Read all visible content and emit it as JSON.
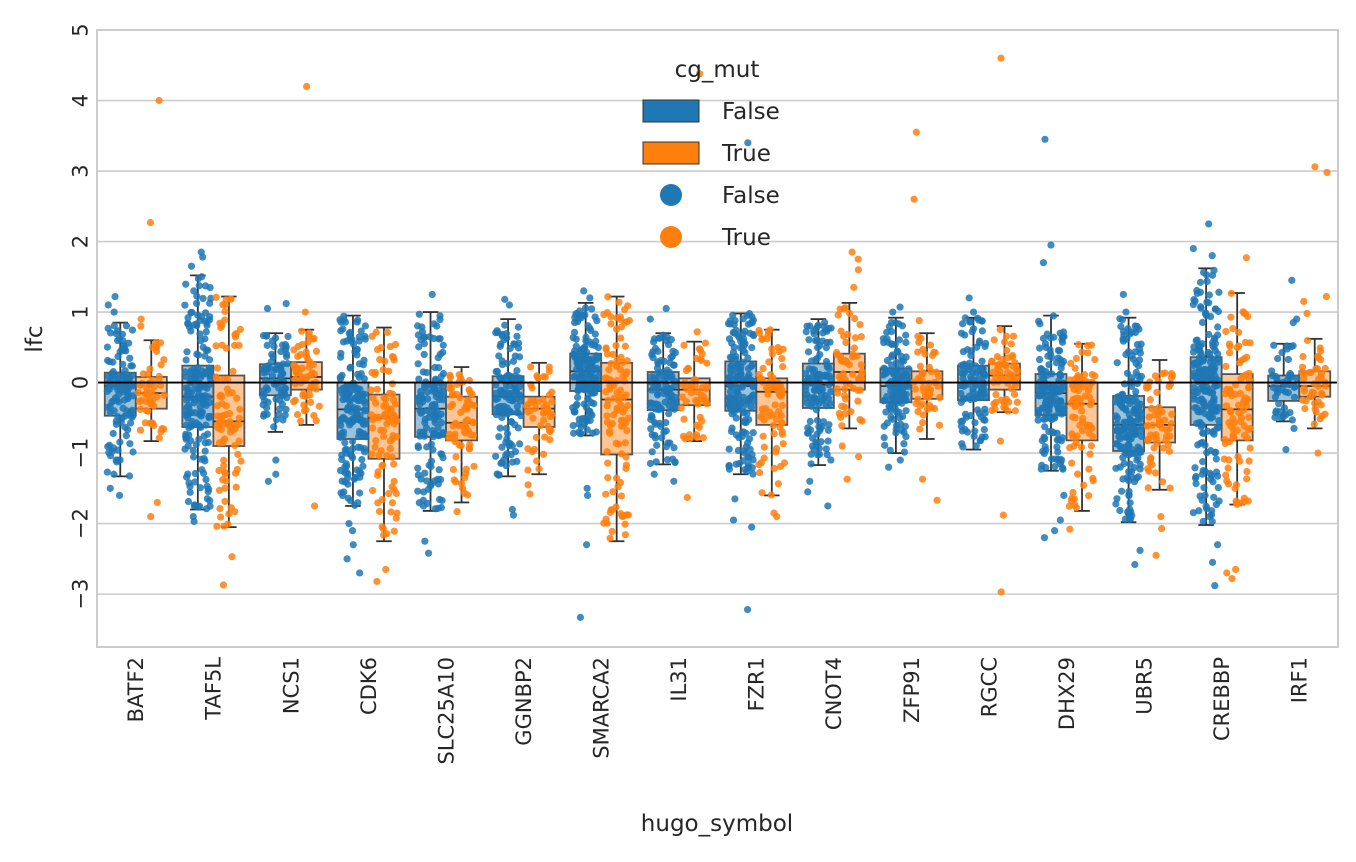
{
  "chart_data": {
    "type": "box",
    "xlabel": "hugo_symbol",
    "ylabel": "lfc",
    "ylim": [
      -3.75,
      5.0
    ],
    "yticks": [
      -3,
      -2,
      -1,
      0,
      1,
      2,
      3,
      4,
      5
    ],
    "grid": true,
    "reference_line_y": 0,
    "categories": [
      "BATF2",
      "TAF5L",
      "NCS1",
      "CDK6",
      "SLC25A10",
      "GGNBP2",
      "SMARCA2",
      "IL31",
      "FZR1",
      "CNOT4",
      "ZFP91",
      "RGCC",
      "DHX29",
      "UBR5",
      "CREBBP",
      "IRF1"
    ],
    "legend": {
      "title": "cg_mut",
      "placement": "top-center",
      "entries": [
        {
          "label": "False",
          "kind": "box",
          "color": "#1f77b4"
        },
        {
          "label": "True",
          "kind": "box",
          "color": "#ff7f0e"
        },
        {
          "label": "False",
          "kind": "point",
          "color": "#1f77b4"
        },
        {
          "label": "True",
          "kind": "point",
          "color": "#ff7f0e"
        }
      ]
    },
    "series": [
      {
        "name": "False",
        "color": "#1f77b4",
        "boxes": [
          {
            "whislo": -1.33,
            "q1": -0.47,
            "med": -0.05,
            "q3": 0.14,
            "whishi": 0.85,
            "outliers": [
              -1.6,
              -1.5,
              1.0,
              1.1,
              1.22
            ],
            "n": 120
          },
          {
            "whislo": -1.8,
            "q1": -0.63,
            "med": -0.2,
            "q3": 0.24,
            "whishi": 1.52,
            "outliers": [
              -1.97,
              -1.9,
              1.65,
              1.78,
              1.85
            ],
            "n": 180
          },
          {
            "whislo": -0.7,
            "q1": -0.18,
            "med": 0.06,
            "q3": 0.26,
            "whishi": 0.7,
            "outliers": [
              -1.4,
              -1.3,
              -1.1,
              1.05,
              1.12
            ],
            "n": 80
          },
          {
            "whislo": -1.75,
            "q1": -0.8,
            "med": -0.38,
            "q3": 0.0,
            "whishi": 0.95,
            "outliers": [
              -2.7,
              -2.5,
              -2.3,
              -2.1,
              -2.0
            ],
            "n": 170
          },
          {
            "whislo": -1.82,
            "q1": -0.77,
            "med": -0.37,
            "q3": 0.0,
            "whishi": 1.0,
            "outliers": [
              -2.42,
              -2.25,
              1.25
            ],
            "n": 140
          },
          {
            "whislo": -1.33,
            "q1": -0.45,
            "med": -0.2,
            "q3": 0.09,
            "whishi": 0.9,
            "outliers": [
              -1.88,
              -1.8,
              1.1,
              1.18
            ],
            "n": 130
          },
          {
            "whislo": -0.75,
            "q1": -0.12,
            "med": 0.16,
            "q3": 0.41,
            "whishi": 1.13,
            "outliers": [
              -3.33,
              -2.3,
              -1.6,
              -1.5,
              1.2,
              1.3
            ],
            "n": 150
          },
          {
            "whislo": -1.16,
            "q1": -0.39,
            "med": -0.1,
            "q3": 0.15,
            "whishi": 0.7,
            "outliers": [
              -1.4,
              -1.3,
              0.9,
              1.05
            ],
            "n": 110
          },
          {
            "whislo": -1.3,
            "q1": -0.4,
            "med": -0.05,
            "q3": 0.3,
            "whishi": 0.98,
            "outliers": [
              -3.22,
              -2.05,
              -1.95,
              -1.65,
              3.4
            ],
            "n": 170
          },
          {
            "whislo": -1.17,
            "q1": -0.36,
            "med": -0.03,
            "q3": 0.27,
            "whishi": 0.9,
            "outliers": [
              -1.75,
              -1.55,
              -1.4
            ],
            "n": 120
          },
          {
            "whislo": -1.0,
            "q1": -0.28,
            "med": -0.05,
            "q3": 0.2,
            "whishi": 0.92,
            "outliers": [
              -1.2,
              -1.1,
              1.0,
              1.07
            ],
            "n": 120
          },
          {
            "whislo": -0.95,
            "q1": -0.25,
            "med": 0.0,
            "q3": 0.24,
            "whishi": 0.92,
            "outliers": [
              1.0,
              1.2
            ],
            "n": 110
          },
          {
            "whislo": -1.25,
            "q1": -0.46,
            "med": -0.15,
            "q3": 0.12,
            "whishi": 0.95,
            "outliers": [
              -2.2,
              -2.1,
              -1.95,
              -1.6,
              1.7,
              1.95,
              3.45
            ],
            "n": 150
          },
          {
            "whislo": -1.98,
            "q1": -0.97,
            "med": -0.6,
            "q3": -0.19,
            "whishi": 0.92,
            "outliers": [
              -2.58,
              -2.38,
              1.0,
              1.25
            ],
            "n": 170
          },
          {
            "whislo": -2.02,
            "q1": -0.6,
            "med": 0.0,
            "q3": 0.36,
            "whishi": 1.62,
            "outliers": [
              -2.88,
              -2.55,
              -2.3,
              1.8,
              1.9,
              2.25
            ],
            "n": 200
          },
          {
            "whislo": -0.55,
            "q1": -0.26,
            "med": -0.05,
            "q3": 0.1,
            "whishi": 0.55,
            "outliers": [
              -0.95,
              -0.65,
              0.85,
              0.9,
              1.45
            ],
            "n": 45
          }
        ]
      },
      {
        "name": "True",
        "color": "#ff7f0e",
        "boxes": [
          {
            "whislo": -0.83,
            "q1": -0.37,
            "med": -0.15,
            "q3": 0.08,
            "whishi": 0.6,
            "outliers": [
              -1.9,
              -1.7,
              0.8,
              0.9,
              2.27,
              4.0
            ],
            "n": 50
          },
          {
            "whislo": -2.05,
            "q1": -0.9,
            "med": -0.55,
            "q3": 0.1,
            "whishi": 1.22,
            "outliers": [
              -2.87,
              -2.47
            ],
            "n": 90
          },
          {
            "whislo": -0.6,
            "q1": -0.1,
            "med": 0.08,
            "q3": 0.29,
            "whishi": 0.75,
            "outliers": [
              -1.75,
              1.0,
              4.2
            ],
            "n": 60
          },
          {
            "whislo": -2.25,
            "q1": -1.08,
            "med": -0.5,
            "q3": -0.17,
            "whishi": 0.78,
            "outliers": [
              -2.82,
              -2.65
            ],
            "n": 90
          },
          {
            "whislo": -1.7,
            "q1": -0.82,
            "med": -0.57,
            "q3": -0.2,
            "whishi": 0.22,
            "outliers": [
              -1.83
            ],
            "n": 70
          },
          {
            "whislo": -1.3,
            "q1": -0.63,
            "med": -0.37,
            "q3": -0.2,
            "whishi": 0.28,
            "outliers": [
              -1.58,
              -1.45
            ],
            "n": 50
          },
          {
            "whislo": -2.25,
            "q1": -1.02,
            "med": -0.24,
            "q3": 0.28,
            "whishi": 1.22,
            "outliers": [],
            "n": 110
          },
          {
            "whislo": -0.83,
            "q1": -0.32,
            "med": -0.1,
            "q3": 0.06,
            "whishi": 0.58,
            "outliers": [
              -1.63,
              0.72,
              4.38
            ],
            "n": 50
          },
          {
            "whislo": -1.6,
            "q1": -0.6,
            "med": -0.13,
            "q3": 0.06,
            "whishi": 0.75,
            "outliers": [
              -1.9,
              -1.85
            ],
            "n": 80
          },
          {
            "whislo": -0.65,
            "q1": -0.1,
            "med": 0.15,
            "q3": 0.41,
            "whishi": 1.13,
            "outliers": [
              -1.37,
              -1.05,
              -0.9,
              1.35,
              1.6,
              1.75,
              1.85
            ],
            "n": 60
          },
          {
            "whislo": -0.8,
            "q1": -0.23,
            "med": 0.0,
            "q3": 0.16,
            "whishi": 0.7,
            "outliers": [
              -1.67,
              -1.37,
              0.88,
              2.6,
              3.55
            ],
            "n": 50
          },
          {
            "whislo": -0.42,
            "q1": -0.1,
            "med": 0.1,
            "q3": 0.27,
            "whishi": 0.8,
            "outliers": [
              -2.97,
              -1.88,
              -0.83,
              4.6
            ],
            "n": 60
          },
          {
            "whislo": -1.82,
            "q1": -0.82,
            "med": -0.3,
            "q3": 0.0,
            "whishi": 0.55,
            "outliers": [
              -2.08
            ],
            "n": 80
          },
          {
            "whislo": -1.52,
            "q1": -0.85,
            "med": -0.6,
            "q3": -0.35,
            "whishi": 0.32,
            "outliers": [
              -2.45,
              -2.07,
              -1.9
            ],
            "n": 60
          },
          {
            "whislo": -1.73,
            "q1": -0.82,
            "med": -0.38,
            "q3": 0.12,
            "whishi": 1.27,
            "outliers": [
              -2.78,
              -2.7,
              -2.65,
              1.77
            ],
            "n": 90
          },
          {
            "whislo": -0.65,
            "q1": -0.2,
            "med": -0.05,
            "q3": 0.16,
            "whishi": 0.62,
            "outliers": [
              -1.0,
              0.98,
              1.15,
              1.22,
              2.98,
              3.06
            ],
            "n": 45
          }
        ]
      }
    ]
  }
}
